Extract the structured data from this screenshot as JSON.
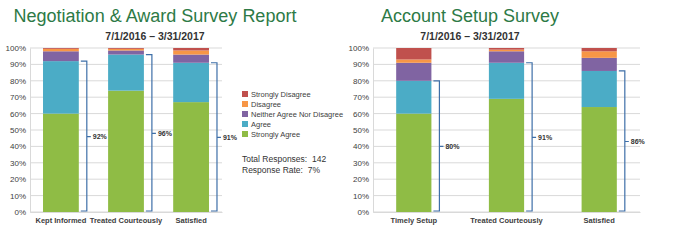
{
  "chart_data": [
    {
      "type": "bar",
      "title": "Negotiation & Award Survey Report",
      "subtitle": "7/1/2016 – 3/31/2017",
      "categories": [
        "Kept Informed",
        "Treated Courteously",
        "Satisfied"
      ],
      "stacked": true,
      "legend": "right",
      "grid": true,
      "series": [
        {
          "name": "Strongly Agree",
          "color": "#8fbc45",
          "values": [
            60,
            74,
            67
          ]
        },
        {
          "name": "Agree",
          "color": "#4bacc6",
          "values": [
            32,
            22,
            24
          ]
        },
        {
          "name": "Neither Agree Nor Disagree",
          "color": "#8064a2",
          "values": [
            6,
            2.5,
            5
          ]
        },
        {
          "name": "Disagree",
          "color": "#f79646",
          "values": [
            1.5,
            1,
            2.5
          ]
        },
        {
          "name": "Strongly Disagree",
          "color": "#c0504d",
          "values": [
            0.5,
            0.5,
            1.5
          ]
        }
      ],
      "ylim": [
        0,
        100
      ],
      "yticks": [
        {
          "value": 0,
          "label": "0%"
        },
        {
          "value": 10,
          "label": "10%"
        },
        {
          "value": 20,
          "label": "20%"
        },
        {
          "value": 30,
          "label": "30%"
        },
        {
          "value": 40,
          "label": "40%"
        },
        {
          "value": 50,
          "label": "50%"
        },
        {
          "value": 60,
          "label": "60%"
        },
        {
          "value": 70,
          "label": "70%"
        },
        {
          "value": 80,
          "label": "80%"
        },
        {
          "value": 90,
          "label": "90%"
        },
        {
          "value": 100,
          "label": "100%"
        }
      ],
      "annotations": [
        {
          "text": "92%",
          "value": 92
        },
        {
          "text": "96%",
          "value": 96
        },
        {
          "text": "91%",
          "value": 91
        }
      ],
      "notes": [
        "Total Responses:  142",
        "Response Rate:  7%"
      ]
    },
    {
      "type": "bar",
      "title": "Account Setup Survey",
      "subtitle": "7/1/2016 – 3/31/2017",
      "categories": [
        "Timely Setup",
        "Treated Courteously",
        "Satisfied"
      ],
      "stacked": true,
      "grid": true,
      "series": [
        {
          "color": "#8fbc45",
          "values": [
            60,
            69,
            64
          ]
        },
        {
          "color": "#4bacc6",
          "values": [
            20,
            22,
            22
          ]
        },
        {
          "color": "#8064a2",
          "values": [
            11,
            7,
            8
          ]
        },
        {
          "color": "#f79646",
          "values": [
            2,
            1,
            4
          ]
        },
        {
          "color": "#c0504d",
          "values": [
            7,
            1,
            2
          ]
        }
      ],
      "ylim": [
        0,
        100
      ],
      "yticks": [
        {
          "value": 0,
          "label": "0%"
        },
        {
          "value": 10,
          "label": "10%"
        },
        {
          "value": 20,
          "label": "20%"
        },
        {
          "value": 30,
          "label": "30%"
        },
        {
          "value": 40,
          "label": "40%"
        },
        {
          "value": 50,
          "label": "50%"
        },
        {
          "value": 60,
          "label": "60%"
        },
        {
          "value": 70,
          "label": "70%"
        },
        {
          "value": 80,
          "label": "80%"
        },
        {
          "value": 90,
          "label": "90%"
        },
        {
          "value": 100,
          "label": "100%"
        }
      ],
      "annotations": [
        {
          "text": "80%",
          "value": 80
        },
        {
          "text": "91%",
          "value": 91
        },
        {
          "text": "86%",
          "value": 86
        }
      ]
    }
  ]
}
